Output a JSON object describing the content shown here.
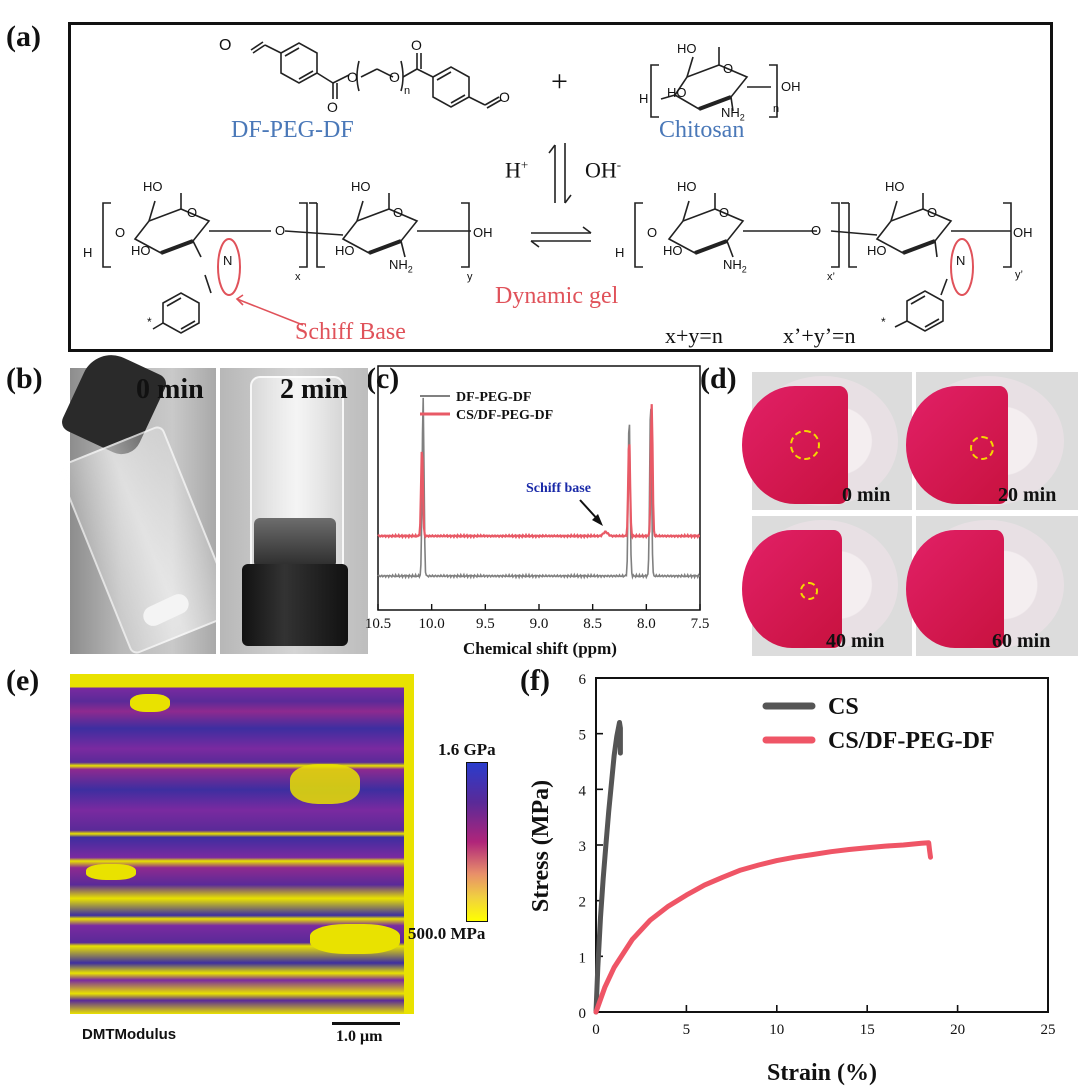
{
  "panel_labels": [
    "(a)",
    "(b)",
    "(c)",
    "(d)",
    "(e)",
    "(f)"
  ],
  "scheme": {
    "reactant1": "DF-PEG-DF",
    "reactant2": "Chitosan",
    "plus": "+",
    "acid": "H",
    "acid_sup": "+",
    "base": "OH",
    "base_sup": "-",
    "product": "Dynamic gel",
    "schiff": "Schiff Base",
    "eq1": "x+y=n",
    "eq2": "x’+y’=n",
    "atoms": {
      "ho": "HO",
      "oh": "OH",
      "o": "O",
      "h": "H",
      "nh2": "NH",
      "nh2_sub": "2",
      "n": "N",
      "sub_n": "n",
      "sub_x": "x",
      "sub_y": "y",
      "sub_xp": "x’",
      "sub_yp": "y’",
      "star": "*"
    }
  },
  "panel_b": {
    "t0": "0 min",
    "t1": "2 min"
  },
  "panel_c": {
    "legend": [
      "DF-PEG-DF",
      "CS/DF-PEG-DF"
    ],
    "annotation": "Schiff base",
    "xlabel": "Chemical shift (ppm)",
    "xticks": [
      "10.5",
      "10.0",
      "9.5",
      "9.0",
      "8.5",
      "8.0",
      "7.5"
    ]
  },
  "panel_d": {
    "times": [
      "0 min",
      "20 min",
      "40 min",
      "60 min"
    ]
  },
  "panel_e": {
    "max_label": "1.6 GPa",
    "min_label": "500.0 MPa",
    "map_label": "DMTModulus",
    "scale_label": "1.0 μm"
  },
  "chart_data": [
    {
      "type": "line",
      "title": "",
      "xlabel": "Chemical shift (ppm)",
      "ylabel": "",
      "xlim": [
        10.5,
        7.5
      ],
      "x_reversed": true,
      "series": [
        {
          "name": "DF-PEG-DF",
          "color": "#808080",
          "peaks": [
            {
              "x": 10.08,
              "height": 0.95
            },
            {
              "x": 8.16,
              "height": 0.85
            },
            {
              "x": 7.96,
              "height": 0.93
            }
          ]
        },
        {
          "name": "CS/DF-PEG-DF",
          "color": "#e85a66",
          "peaks": [
            {
              "x": 10.09,
              "height": 0.65
            },
            {
              "x": 8.38,
              "height": 0.03
            },
            {
              "x": 8.16,
              "height": 0.72
            },
            {
              "x": 7.95,
              "height": 0.97
            }
          ]
        }
      ],
      "annotations": [
        "Schiff base"
      ]
    },
    {
      "type": "line",
      "title": "",
      "xlabel": "Strain (%)",
      "ylabel": "Stress (MPa)",
      "xlim": [
        0,
        25
      ],
      "ylim": [
        0,
        6
      ],
      "xticks": [
        0,
        5,
        10,
        15,
        20,
        25
      ],
      "yticks": [
        0,
        1,
        2,
        3,
        4,
        5,
        6
      ],
      "legend_position": "top-right",
      "series": [
        {
          "name": "CS",
          "color": "#555555",
          "x": [
            0,
            0.1,
            0.25,
            0.4,
            0.55,
            0.7,
            0.85,
            1.0,
            1.15,
            1.3,
            1.35,
            1.35
          ],
          "y": [
            0,
            0.8,
            1.7,
            2.4,
            3.0,
            3.6,
            4.1,
            4.6,
            4.95,
            5.2,
            5.1,
            4.65
          ]
        },
        {
          "name": "CS/DF-PEG-DF",
          "color": "#ef5566",
          "x": [
            0,
            0.5,
            1,
            2,
            3,
            4,
            5,
            6,
            7,
            8,
            9,
            10,
            11,
            12,
            13,
            14,
            15,
            16,
            17,
            18,
            18.4,
            18.45,
            18.5
          ],
          "y": [
            0,
            0.45,
            0.8,
            1.3,
            1.65,
            1.9,
            2.1,
            2.28,
            2.42,
            2.55,
            2.64,
            2.72,
            2.78,
            2.83,
            2.88,
            2.92,
            2.95,
            2.98,
            3.0,
            3.03,
            3.04,
            2.9,
            2.78
          ]
        }
      ]
    }
  ]
}
